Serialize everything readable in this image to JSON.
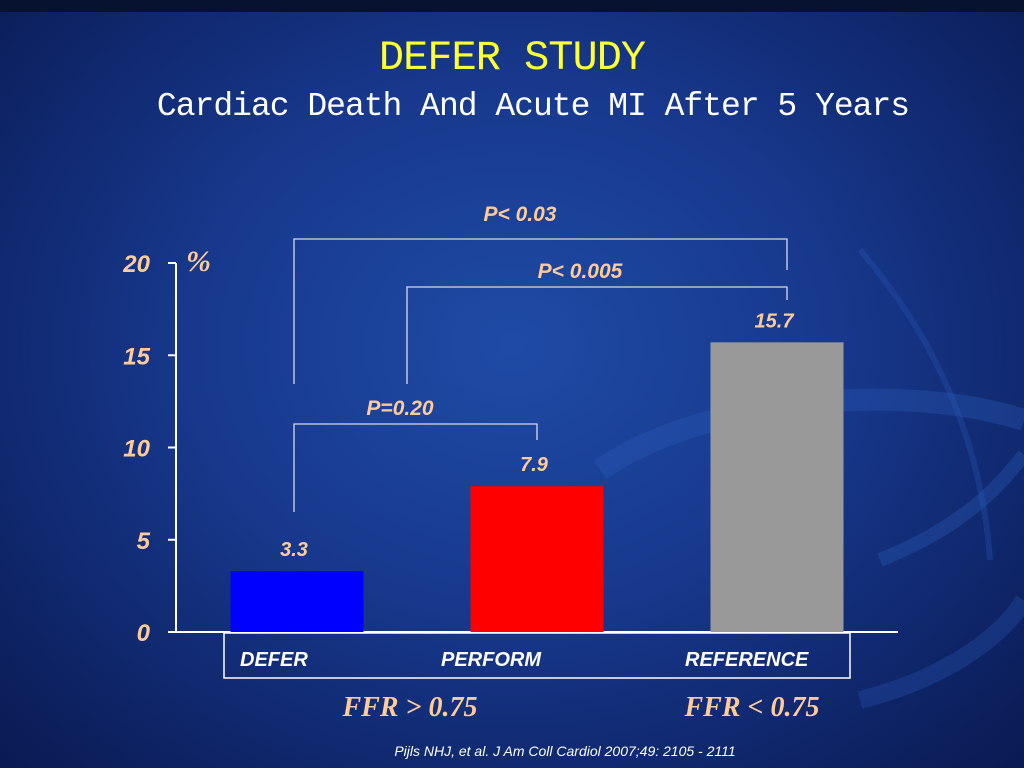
{
  "slide": {
    "title": "DEFER STUDY",
    "subtitle": "Cardiac Death And Acute MI After 5 Years",
    "citation": "Pijls NHJ, et al. J Am Coll Cardiol 2007;49: 2105 - 2111"
  },
  "colors": {
    "title": "#ffff33",
    "label": "#ffcc99",
    "axis": "#ffffff",
    "background": "#17388c"
  },
  "chart_data": {
    "type": "bar",
    "categories": [
      "DEFER",
      "PERFORM",
      "REFERENCE"
    ],
    "values": [
      3.3,
      7.9,
      15.7
    ],
    "data_labels": [
      "3.3",
      "7.9",
      "15.7"
    ],
    "colors": [
      "#0000ff",
      "#ff0000",
      "#999999"
    ],
    "ylabel": "%",
    "ylim": [
      0,
      20
    ],
    "yticks": [
      0,
      5,
      10,
      15,
      20
    ],
    "grid": false,
    "comparisons": [
      {
        "label": "P< 0.03",
        "from": 0,
        "to": 2
      },
      {
        "label": "P< 0.005",
        "from": 1,
        "to": 2
      },
      {
        "label": "P=0.20",
        "from": 0,
        "to": 1
      }
    ],
    "group_labels": [
      {
        "label": "FFR > 0.75",
        "categories": [
          0,
          1
        ]
      },
      {
        "label": "FFR < 0.75",
        "categories": [
          2
        ]
      }
    ]
  }
}
